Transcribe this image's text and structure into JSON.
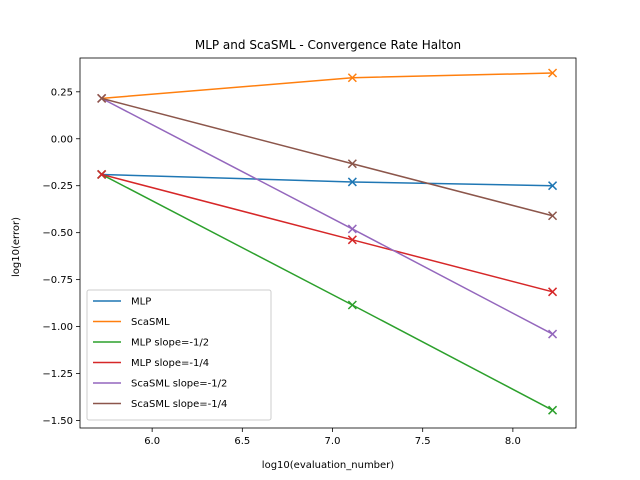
{
  "chart_data": {
    "type": "line",
    "title": "MLP and ScaSML - Convergence Rate Halton",
    "xlabel": "log10(evaluation_number)",
    "ylabel": "log10(error)",
    "xlim": [
      5.6,
      8.35
    ],
    "ylim": [
      -1.54,
      0.43
    ],
    "xticks": [
      6.0,
      6.5,
      7.0,
      7.5,
      8.0
    ],
    "xtick_labels": [
      "6.0",
      "6.5",
      "7.0",
      "7.5",
      "8.0"
    ],
    "yticks": [
      0.25,
      0.0,
      -0.25,
      -0.5,
      -0.75,
      -1.0,
      -1.25,
      -1.5
    ],
    "ytick_labels": [
      "0.25",
      "0.00",
      "−0.25",
      "−0.50",
      "−0.75",
      "−1.00",
      "−1.25",
      "−1.50"
    ],
    "grid": false,
    "legend_position": "lower-left",
    "marker": "x",
    "x": [
      5.72,
      7.11,
      8.22
    ],
    "series": [
      {
        "name": "MLP",
        "color": "#1f77b4",
        "values": [
          -0.19,
          -0.23,
          -0.25
        ]
      },
      {
        "name": "ScaSML",
        "color": "#ff7f0e",
        "values": [
          0.215,
          0.325,
          0.35
        ]
      },
      {
        "name": "MLP slope=-1/2",
        "color": "#2ca02c",
        "values": [
          -0.19,
          -0.885,
          -1.445
        ]
      },
      {
        "name": "MLP slope=-1/4",
        "color": "#d62728",
        "values": [
          -0.19,
          -0.538,
          -0.815
        ]
      },
      {
        "name": "ScaSML slope=-1/2",
        "color": "#9467bd",
        "values": [
          0.215,
          -0.48,
          -1.04
        ]
      },
      {
        "name": "ScaSML slope=-1/4",
        "color": "#8c564b",
        "values": [
          0.215,
          -0.133,
          -0.41
        ]
      }
    ]
  }
}
